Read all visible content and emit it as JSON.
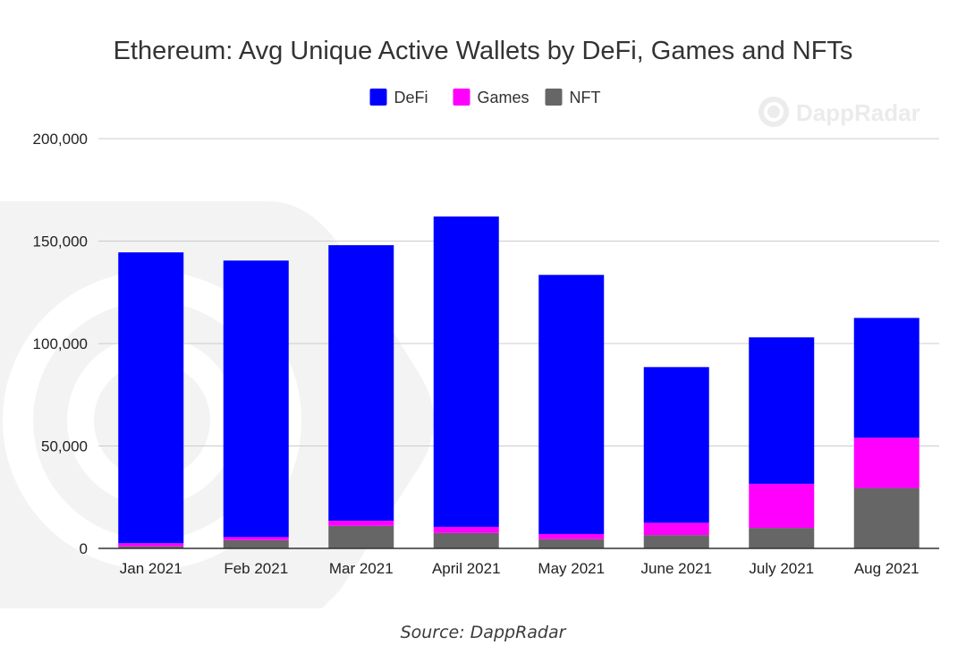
{
  "chart_data": {
    "type": "bar",
    "stacked": true,
    "title": "Ethereum: Avg Unique Active Wallets by DeFi, Games and NFTs",
    "categories": [
      "Jan 2021",
      "Feb 2021",
      "Mar 2021",
      "April 2021",
      "May 2021",
      "June 2021",
      "July 2021",
      "Aug 2021"
    ],
    "series": [
      {
        "name": "NFT",
        "color": "#666666",
        "values": [
          1000,
          4000,
          11000,
          7500,
          4500,
          6500,
          10000,
          29500
        ]
      },
      {
        "name": "Games",
        "color": "#ff00ff",
        "values": [
          1500,
          1500,
          2500,
          3000,
          2500,
          6000,
          21500,
          24500
        ]
      },
      {
        "name": "DeFi",
        "color": "#0000ff",
        "values": [
          142000,
          135000,
          134500,
          151500,
          126500,
          76000,
          71500,
          58500
        ]
      }
    ],
    "legend_order": [
      "DeFi",
      "Games",
      "NFT"
    ],
    "legend_position": "top",
    "yticks": [
      "0",
      "50,000",
      "100,000",
      "150,000",
      "200,000"
    ],
    "ylim": [
      0,
      200000
    ],
    "grid": true,
    "xlabel": "",
    "ylabel": ""
  },
  "watermark": {
    "text": "DappRadar",
    "icon": "dappradar-logo-icon"
  },
  "source": "Source: DappRadar"
}
